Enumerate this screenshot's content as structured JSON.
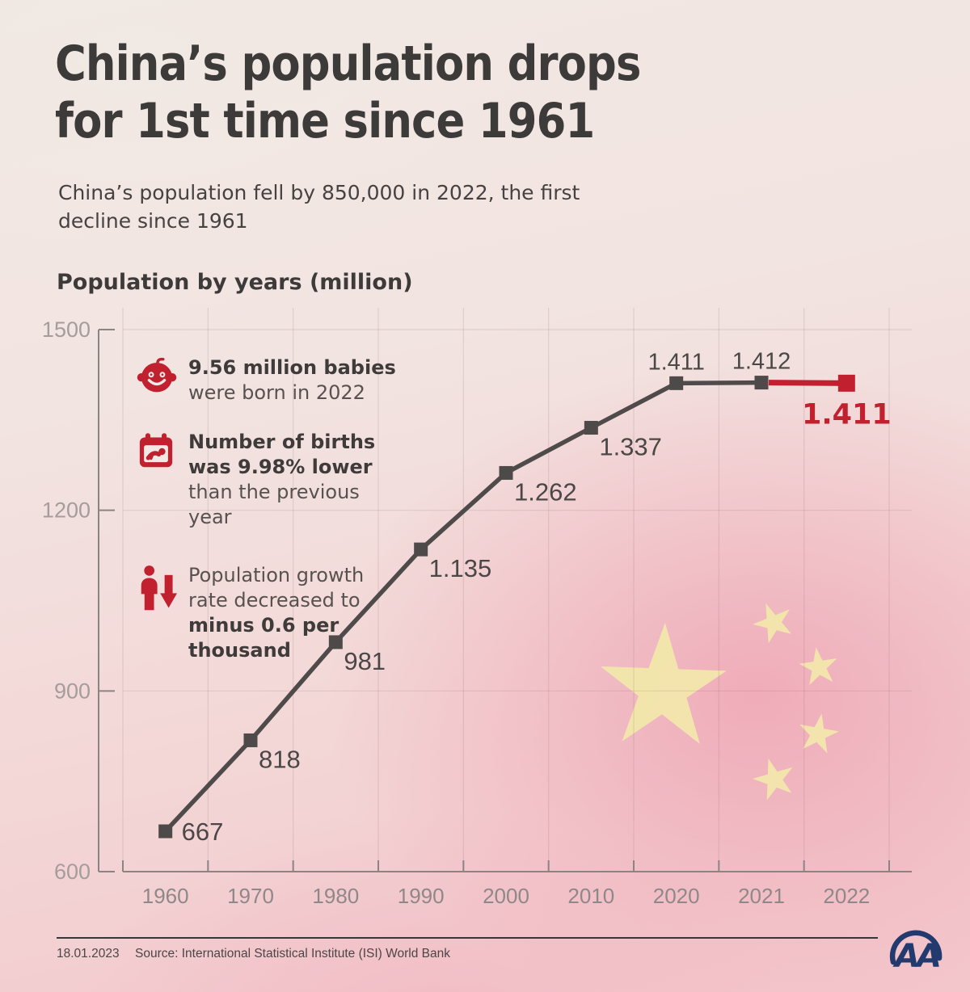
{
  "header": {
    "title_line1": "China’s population drops",
    "title_line2": "for 1st time since 1961",
    "subtitle": "China’s population fell by 850,000 in 2022, the first decline since 1961"
  },
  "chart_data": {
    "type": "line",
    "title": "Population by years (million)",
    "categories": [
      "1960",
      "1970",
      "1980",
      "1990",
      "2000",
      "2010",
      "2020",
      "2021",
      "2022"
    ],
    "values": [
      667,
      818,
      981,
      1135,
      1262,
      1337,
      1411,
      1412,
      1411
    ],
    "point_labels": [
      "667",
      "818",
      "981",
      "1.135",
      "1.262",
      "1.337",
      "1.411",
      "1.412",
      "1.411"
    ],
    "label_placement": [
      "right",
      "below",
      "below",
      "below",
      "below",
      "below",
      "above",
      "above",
      "highlight"
    ],
    "highlight_last_segment": true,
    "ylabel": "",
    "xlabel": "",
    "ylim": [
      600,
      1500
    ],
    "yticks": [
      1500,
      1200,
      900,
      600
    ],
    "grid": true,
    "legend": "none",
    "colors": {
      "line": "#504b4b",
      "marker": "#4f4a4a",
      "highlight": "#c1202f",
      "grid": "rgba(125,95,95,0.16)",
      "axis": "#8a8483",
      "x_tick_label": "#8f8889",
      "y_tick_label": "#a49d9c",
      "value_label": "#4b4747"
    }
  },
  "callouts": {
    "babies_bold": "9.56 million babies",
    "babies_regular": "were born in 2022",
    "births_bold": "Number of births was 9.98% lower",
    "births_regular": "than the previous year",
    "growth_regular": "Population growth rate decreased to",
    "growth_bold": "minus 0.6 per thousand"
  },
  "footer": {
    "date": "18.01.2023",
    "source": "Source: International Statistical Institute (ISI) World Bank",
    "logo_text": "AA"
  },
  "brand": {
    "accent_red": "#c1202f",
    "logo_navy": "#223a6d",
    "flag_star_yellow": "#f3e9ab",
    "title_color": "#3d3a3a"
  }
}
